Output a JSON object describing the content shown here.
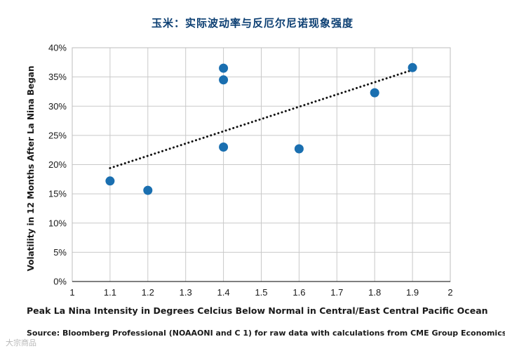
{
  "chart_data": {
    "type": "scatter",
    "title": "玉米：实际波动率与反厄尔尼诺现象强度",
    "xlabel": "Peak La Nina Intensity in Degrees Celcius Below Normal in Central/East Central Pacific Ocean",
    "ylabel": "Volatility in 12 Months After La Nina Began",
    "xlim": [
      1,
      2
    ],
    "ylim": [
      0,
      40
    ],
    "x_ticks": [
      "1",
      "1.1",
      "1.2",
      "1.3",
      "1.4",
      "1.5",
      "1.6",
      "1.7",
      "1.8",
      "1.9",
      "2"
    ],
    "y_ticks": [
      "0%",
      "5%",
      "10%",
      "15%",
      "20%",
      "25%",
      "30%",
      "35%",
      "40%"
    ],
    "grid": true,
    "points": [
      {
        "x": 1.1,
        "y": 17.2
      },
      {
        "x": 1.2,
        "y": 15.6
      },
      {
        "x": 1.4,
        "y": 36.5
      },
      {
        "x": 1.4,
        "y": 34.5
      },
      {
        "x": 1.4,
        "y": 23.0
      },
      {
        "x": 1.6,
        "y": 22.7
      },
      {
        "x": 1.8,
        "y": 32.3
      },
      {
        "x": 1.9,
        "y": 36.6
      }
    ],
    "trendline": {
      "style": "dotted",
      "from": {
        "x": 1.1,
        "y": 19.4
      },
      "to": {
        "x": 1.9,
        "y": 36.2
      }
    },
    "marker_color": "#1a6fb0",
    "title_color": "#0b3e72",
    "source": "Source: Bloomberg Professional (NOAAONI and C 1) for raw data with calculations from CME Group Economics"
  },
  "watermark": "大宗商品"
}
